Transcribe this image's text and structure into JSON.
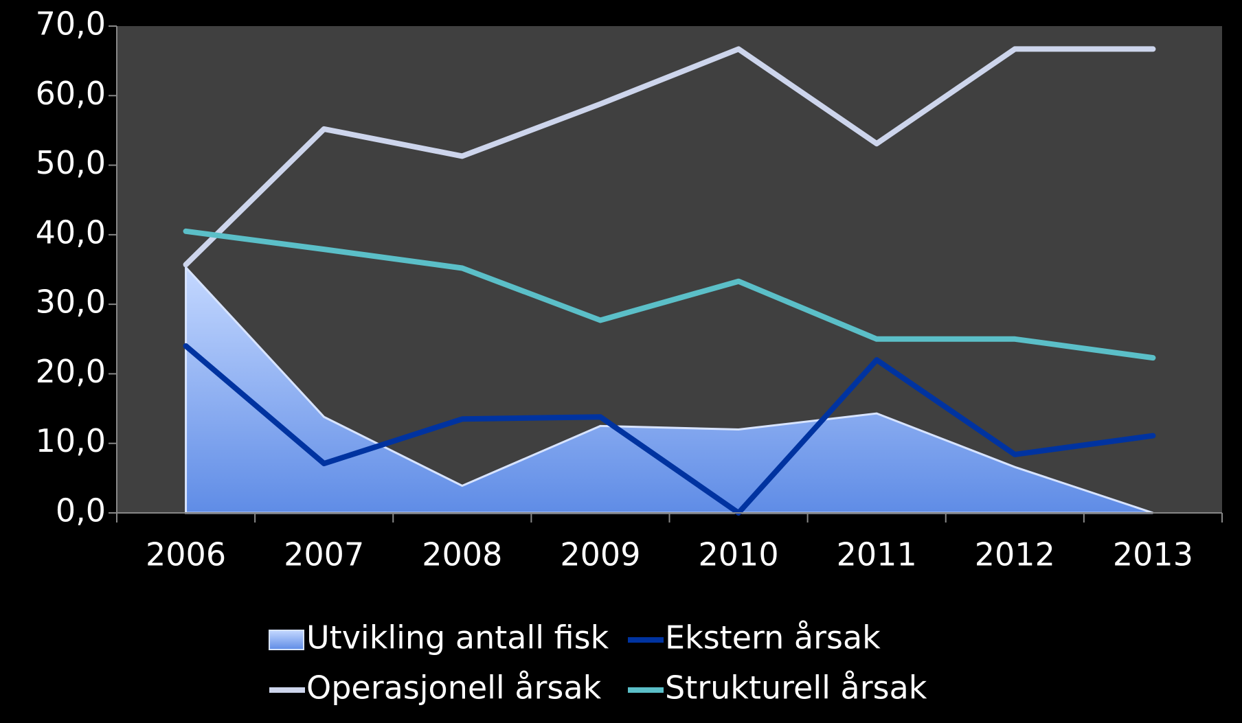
{
  "chart_data": {
    "type": "line",
    "categories": [
      "2006",
      "2007",
      "2008",
      "2009",
      "2010",
      "2011",
      "2012",
      "2013"
    ],
    "series": [
      {
        "name": "Utvikling antall fisk",
        "type": "area",
        "color": "#5f8ce6",
        "values": [
          35.3,
          13.8,
          3.9,
          12.5,
          12.0,
          14.3,
          6.6,
          0
        ]
      },
      {
        "name": "Ekstern årsak",
        "type": "line",
        "color": "#0033a0",
        "values": [
          24.0,
          7.1,
          13.5,
          13.8,
          0,
          22.0,
          8.4,
          11.1
        ]
      },
      {
        "name": "Operasjonell årsak",
        "type": "line",
        "color": "#cdd5ec",
        "values": [
          35.7,
          55.2,
          51.3,
          58.8,
          66.7,
          53.1,
          66.7,
          66.7
        ]
      },
      {
        "name": "Strukturell årsak",
        "type": "line",
        "color": "#5bbfc8",
        "values": [
          40.5,
          37.9,
          35.2,
          27.7,
          33.3,
          25.0,
          25.0,
          22.3
        ]
      }
    ],
    "ylim": [
      0,
      70
    ],
    "yticks": [
      {
        "value": 0,
        "label": "0,0"
      },
      {
        "value": 10,
        "label": "10,0"
      },
      {
        "value": 20,
        "label": "20,0"
      },
      {
        "value": 30,
        "label": "30,0"
      },
      {
        "value": 40,
        "label": "40,0"
      },
      {
        "value": 50,
        "label": "50,0"
      },
      {
        "value": 60,
        "label": "60,0"
      },
      {
        "value": 70,
        "label": "70,0"
      }
    ],
    "legend": "bottom"
  }
}
